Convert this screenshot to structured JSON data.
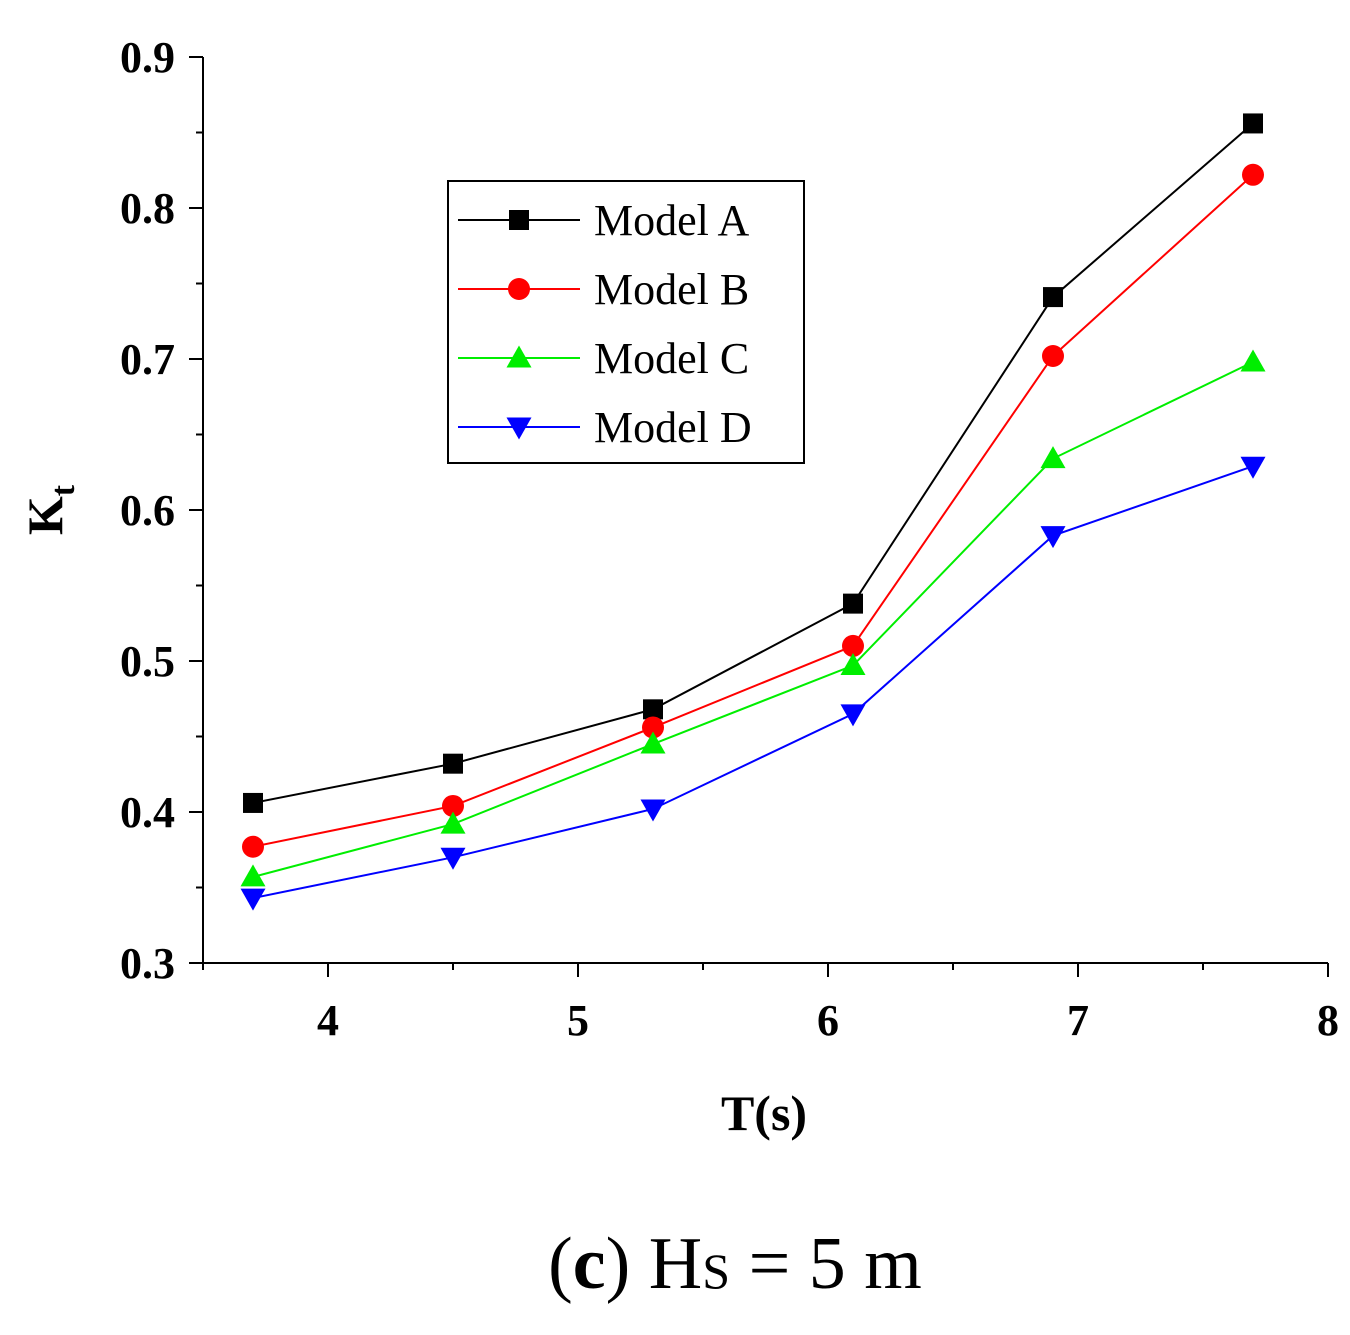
{
  "chart_data": {
    "type": "line",
    "title": "",
    "xlabel": "T(s)",
    "ylabel_main": "K",
    "ylabel_sub": "t",
    "xlim": [
      3.5,
      8
    ],
    "ylim": [
      0.3,
      0.9
    ],
    "xticks": [
      4,
      5,
      6,
      7,
      8
    ],
    "xtick_labels": [
      "4",
      "5",
      "6",
      "7",
      "8"
    ],
    "yticks": [
      0.3,
      0.4,
      0.5,
      0.6,
      0.7,
      0.8,
      0.9
    ],
    "ytick_labels": [
      "0.3",
      "0.4",
      "0.5",
      "0.6",
      "0.7",
      "0.8",
      "0.9"
    ],
    "x": [
      3.7,
      4.5,
      5.3,
      6.1,
      6.9,
      7.7
    ],
    "series": [
      {
        "name": "Model A",
        "color": "#000000",
        "marker": "square",
        "values": [
          0.406,
          0.432,
          0.468,
          0.538,
          0.741,
          0.856
        ]
      },
      {
        "name": "Model B",
        "color": "#ff0000",
        "marker": "circle",
        "values": [
          0.377,
          0.404,
          0.456,
          0.51,
          0.702,
          0.822
        ]
      },
      {
        "name": "Model C",
        "color": "#00ee00",
        "marker": "triangle-up",
        "values": [
          0.357,
          0.392,
          0.445,
          0.497,
          0.634,
          0.698
        ]
      },
      {
        "name": "Model D",
        "color": "#0000ff",
        "marker": "triangle-down",
        "values": [
          0.343,
          0.37,
          0.402,
          0.465,
          0.583,
          0.629
        ]
      }
    ],
    "legend_position": "upper-left-inside",
    "caption": {
      "open_paren": "(",
      "letter": "c",
      "close_paren": ")",
      "text_main": " H",
      "text_sub": "S",
      "text_rest": " = 5 m"
    }
  }
}
